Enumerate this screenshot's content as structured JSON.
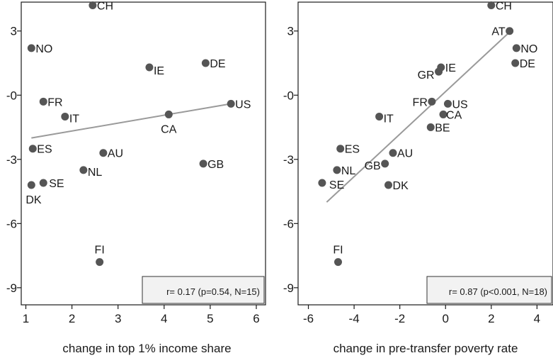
{
  "chart_data": [
    {
      "type": "scatter",
      "xlabel": "change in top 1% income share",
      "ylabel": "",
      "xlim": [
        0.9,
        6.2
      ],
      "ylim": [
        -9.8,
        4.35
      ],
      "x_ticks": [
        "1",
        "2",
        "3",
        "4",
        "5",
        "6"
      ],
      "y_ticks": [
        "3",
        "-0",
        "-3",
        "-6",
        "-9"
      ],
      "annotation": "r= 0.17 (p=0.54, N=15)",
      "trendline": {
        "x": [
          1.12,
          5.45
        ],
        "y": [
          -2.0,
          -0.4
        ]
      },
      "points": [
        {
          "label": "CH",
          "x": 2.45,
          "y": 4.2
        },
        {
          "label": "NO",
          "x": 1.12,
          "y": 2.2
        },
        {
          "label": "IE",
          "x": 3.68,
          "y": 1.3
        },
        {
          "label": "DE",
          "x": 4.9,
          "y": 1.5
        },
        {
          "label": "FR",
          "x": 1.38,
          "y": -0.3
        },
        {
          "label": "US",
          "x": 5.45,
          "y": -0.4
        },
        {
          "label": "IT",
          "x": 1.85,
          "y": -1.0
        },
        {
          "label": "CA",
          "x": 4.1,
          "y": -0.9
        },
        {
          "label": "ES",
          "x": 1.15,
          "y": -2.5
        },
        {
          "label": "AU",
          "x": 2.68,
          "y": -2.7
        },
        {
          "label": "GB",
          "x": 4.85,
          "y": -3.2
        },
        {
          "label": "NL",
          "x": 2.25,
          "y": -3.5
        },
        {
          "label": "SE",
          "x": 1.38,
          "y": -4.1
        },
        {
          "label": "DK",
          "x": 1.12,
          "y": -4.2
        },
        {
          "label": "FI",
          "x": 2.6,
          "y": -7.8
        }
      ]
    },
    {
      "type": "scatter",
      "xlabel": "change in pre-transfer poverty rate",
      "ylabel": "",
      "xlim": [
        -6.45,
        4.7
      ],
      "ylim": [
        -9.8,
        4.35
      ],
      "x_ticks": [
        "-6",
        "-4",
        "-2",
        "0",
        "2",
        "4"
      ],
      "y_ticks": [
        "3",
        "-0",
        "-3",
        "-6",
        "-9"
      ],
      "annotation": "r= 0.87 (p<0.001, N=18)",
      "trendline": {
        "x": [
          -5.2,
          2.85
        ],
        "y": [
          -5.0,
          3.0
        ]
      },
      "points": [
        {
          "label": "CH",
          "x": 2.0,
          "y": 4.2
        },
        {
          "label": "AT",
          "x": 2.8,
          "y": 3.0
        },
        {
          "label": "NO",
          "x": 3.1,
          "y": 2.2
        },
        {
          "label": "DE",
          "x": 3.05,
          "y": 1.5
        },
        {
          "label": "IE",
          "x": -0.2,
          "y": 1.3
        },
        {
          "label": "GR",
          "x": -0.3,
          "y": 1.1
        },
        {
          "label": "FR",
          "x": -0.6,
          "y": -0.3
        },
        {
          "label": "US",
          "x": 0.1,
          "y": -0.4
        },
        {
          "label": "CA",
          "x": -0.1,
          "y": -0.9
        },
        {
          "label": "BE",
          "x": -0.65,
          "y": -1.5
        },
        {
          "label": "IT",
          "x": -2.9,
          "y": -1.0
        },
        {
          "label": "ES",
          "x": -4.6,
          "y": -2.5
        },
        {
          "label": "AU",
          "x": -2.3,
          "y": -2.7
        },
        {
          "label": "GB",
          "x": -2.65,
          "y": -3.2
        },
        {
          "label": "NL",
          "x": -4.75,
          "y": -3.5
        },
        {
          "label": "DK",
          "x": -2.5,
          "y": -4.2
        },
        {
          "label": "SE",
          "x": -5.4,
          "y": -4.1
        },
        {
          "label": "FI",
          "x": -4.7,
          "y": -7.8
        }
      ]
    }
  ]
}
